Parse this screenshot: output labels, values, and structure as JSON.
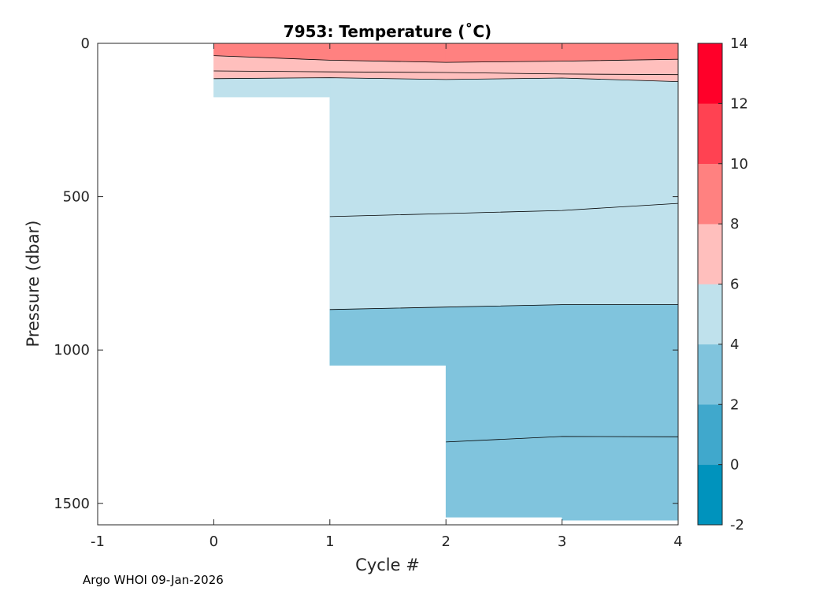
{
  "chart_data": {
    "type": "contour",
    "title": "7953:  Temperature (˚C)",
    "xlabel": "Cycle #",
    "ylabel": "Pressure (dbar)",
    "xlim": [
      -1,
      4
    ],
    "ylim": [
      1570,
      0
    ],
    "y_reversed": true,
    "x_ticks": [
      -1,
      0,
      1,
      2,
      3,
      4
    ],
    "y_ticks": [
      0,
      500,
      1000,
      1500
    ],
    "grid": false,
    "footer": "Argo WHOI 09-Jan-2026",
    "colorbar": {
      "levels": [
        -2,
        0,
        2,
        4,
        6,
        8,
        10,
        12,
        14
      ],
      "tick_labels": [
        "-2",
        "0",
        "2",
        "4",
        "6",
        "8",
        "10",
        "12",
        "14"
      ],
      "colors": [
        "#0093bd",
        "#40a8cc",
        "#80c4dd",
        "#bfe1ec",
        "#ffbfbd",
        "#ff8180",
        "#ff4252",
        "#ff0029"
      ]
    },
    "cycles": [
      0,
      1,
      2,
      3,
      4
    ],
    "max_pressure": [
      175,
      1050,
      1545,
      1555,
      1555
    ],
    "isotherms": [
      {
        "value": 10,
        "color": "#ff8180",
        "pressure": [
          40,
          55,
          62,
          58,
          52
        ]
      },
      {
        "value": 8,
        "color": "#ffbfbd",
        "pressure": [
          90,
          93,
          95,
          100,
          102
        ]
      },
      {
        "value": 6,
        "color": "#bfe1ec",
        "pressure": [
          115,
          112,
          118,
          113,
          125
        ]
      },
      {
        "value": 4,
        "color": "#bfe1ec",
        "pressure": [
          null,
          565,
          555,
          545,
          522
        ]
      },
      {
        "value": 4,
        "color": "#80c4dd",
        "pressure": [
          null,
          868,
          860,
          852,
          852
        ]
      },
      {
        "value": 2,
        "color": "#80c4dd",
        "pressure": [
          null,
          null,
          1300,
          1282,
          1283
        ]
      }
    ],
    "band_colors": {
      "top": "#ff8180",
      "after_10": "#ffbfbd",
      "after_8": "#ffbfbd",
      "after_6": "#bfe1ec",
      "after_4a": "#bfe1ec",
      "after_4b": "#80c4dd",
      "after_2": "#80c4dd"
    }
  }
}
